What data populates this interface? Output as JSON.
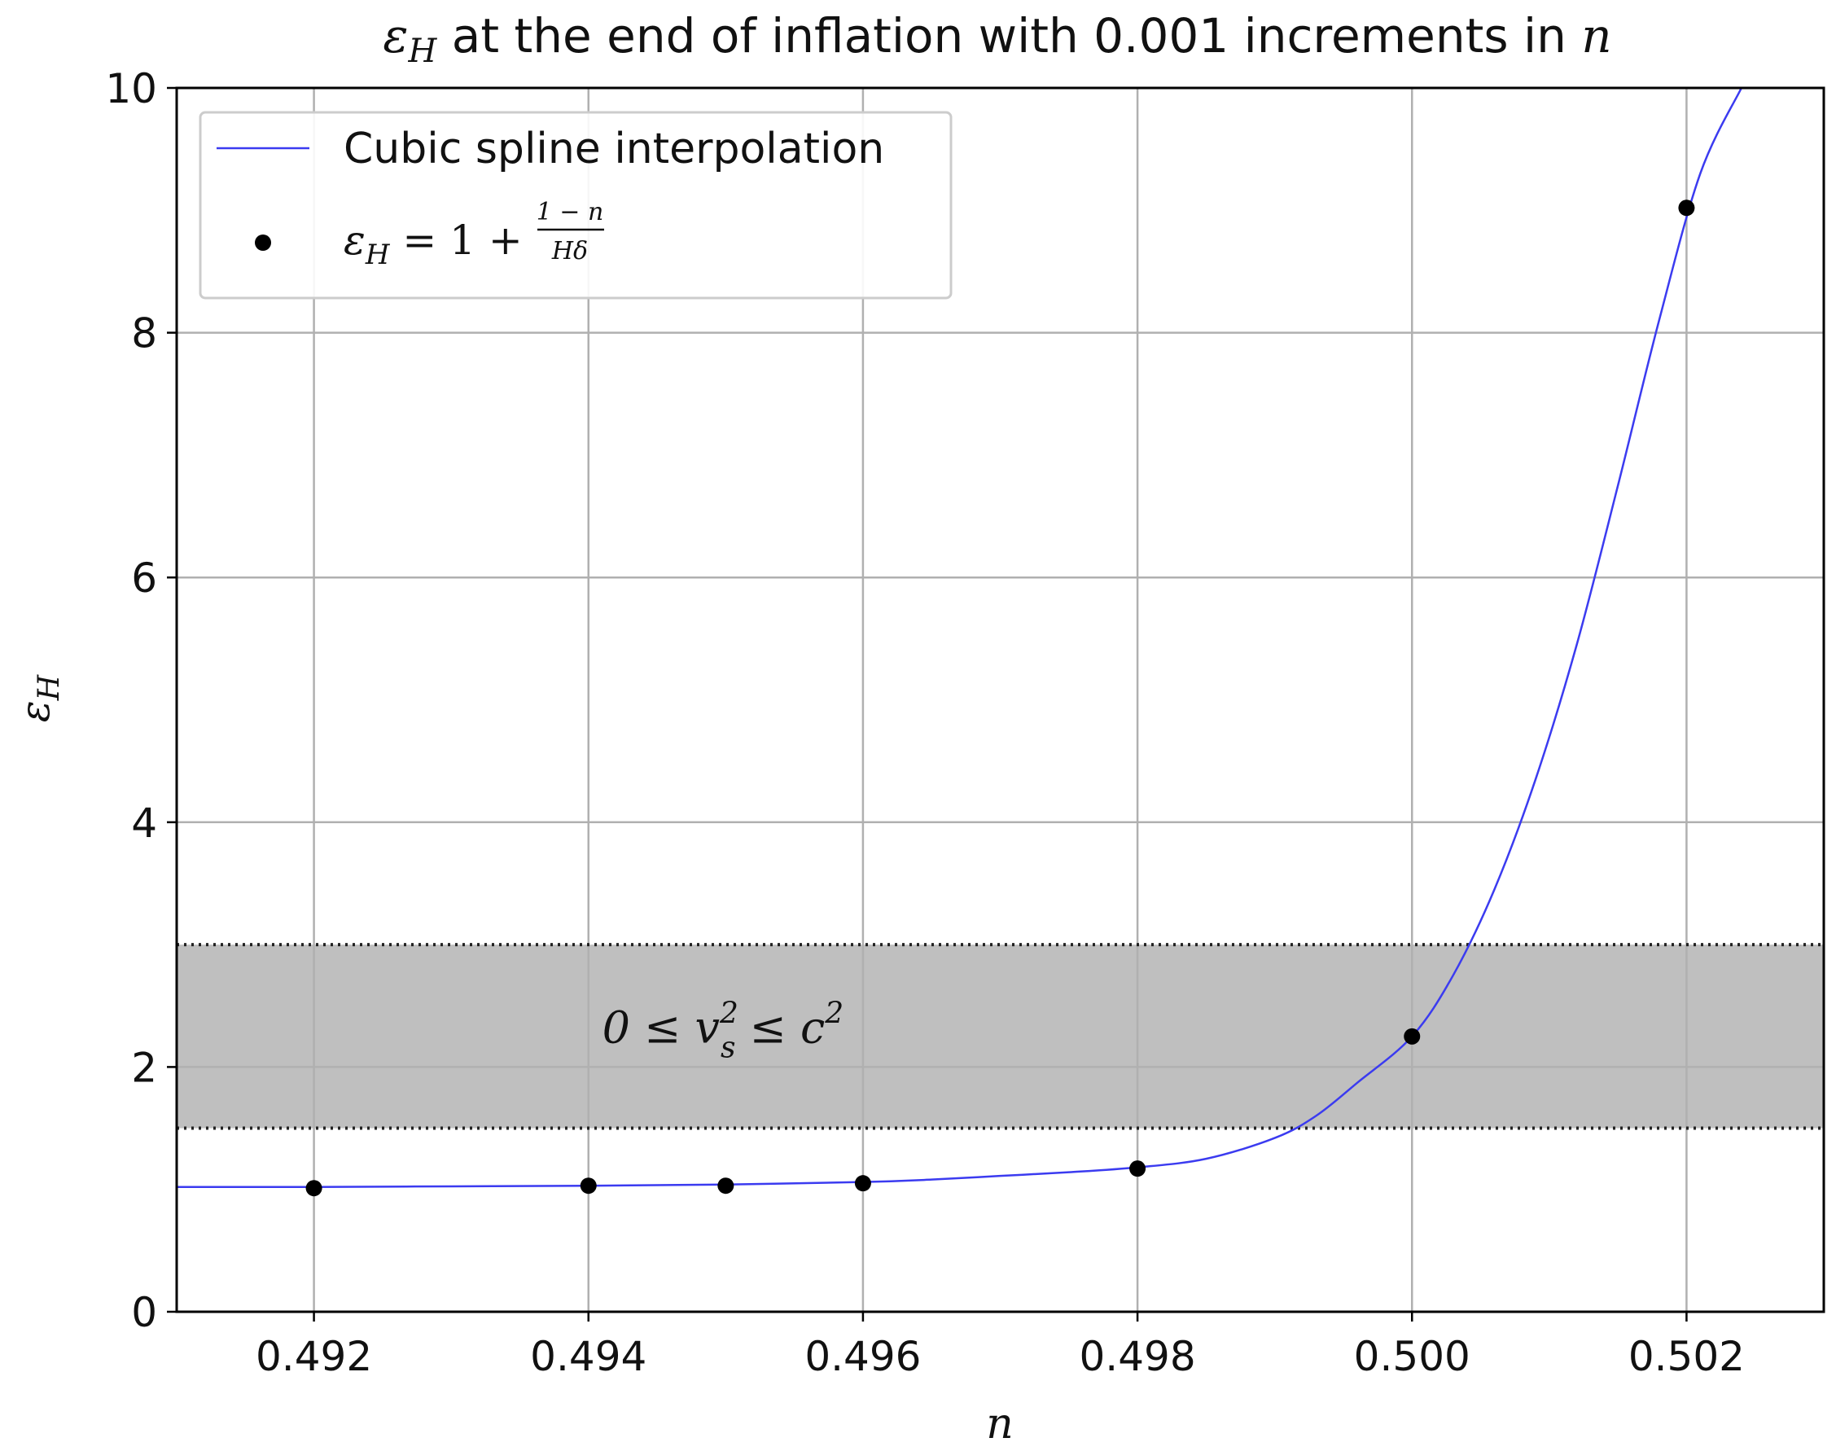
{
  "chart_data": {
    "type": "line",
    "title": {
      "prefix": "ε",
      "sub": "H",
      "rest": " at the end of inflation with 0.001 increments in ",
      "var": "n"
    },
    "xlabel": "n",
    "ylabel": {
      "main": "ε",
      "sub": "H"
    },
    "xlim": [
      0.491,
      0.503
    ],
    "ylim": [
      0,
      10
    ],
    "x_ticks": [
      0.492,
      0.494,
      0.496,
      0.498,
      0.5,
      0.502
    ],
    "x_tick_labels": [
      "0.492",
      "0.494",
      "0.496",
      "0.498",
      "0.500",
      "0.502"
    ],
    "y_ticks": [
      0,
      2,
      4,
      6,
      8,
      10
    ],
    "y_tick_labels": [
      "0",
      "2",
      "4",
      "6",
      "8",
      "10"
    ],
    "grid": true,
    "legend_position": "top-left",
    "series": [
      {
        "name": "Cubic spline interpolation",
        "kind": "line",
        "color": "#3b3bf0",
        "x": [
          0.491,
          0.492,
          0.493,
          0.494,
          0.495,
          0.496,
          0.4965,
          0.497,
          0.4975,
          0.498,
          0.4985,
          0.499,
          0.4993,
          0.4996,
          0.5,
          0.5003,
          0.5006,
          0.5009,
          0.5012,
          0.5015,
          0.5018,
          0.5021,
          0.5024
        ],
        "y": [
          1.02,
          1.02,
          1.025,
          1.03,
          1.04,
          1.06,
          1.08,
          1.11,
          1.14,
          1.18,
          1.25,
          1.42,
          1.6,
          1.87,
          2.25,
          2.75,
          3.45,
          4.35,
          5.45,
          6.75,
          8.1,
          9.3,
          10.0
        ]
      },
      {
        "name": "ε_H = 1 + (1 − n)/(Hδ)",
        "legend": {
          "lhs": "ε",
          "lhs_sub": "H",
          "mid": " = 1 + ",
          "numerator": "1 − n",
          "denominator": "Hδ"
        },
        "kind": "scatter",
        "color": "#000000",
        "x": [
          0.492,
          0.494,
          0.495,
          0.496,
          0.498,
          0.5,
          0.502
        ],
        "y": [
          1.01,
          1.03,
          1.03,
          1.05,
          1.17,
          2.25,
          9.02
        ]
      }
    ],
    "band": {
      "y_range": [
        1.5,
        3.0
      ],
      "fill": "#bfbfbf",
      "label": {
        "lhs": "0 ≤ ",
        "v": "v",
        "v_sup": "2",
        "v_sub": "s",
        "mid": " ≤ ",
        "c": "c",
        "c_sup": "2"
      },
      "label_at": [
        0.4941,
        2.2
      ]
    }
  }
}
